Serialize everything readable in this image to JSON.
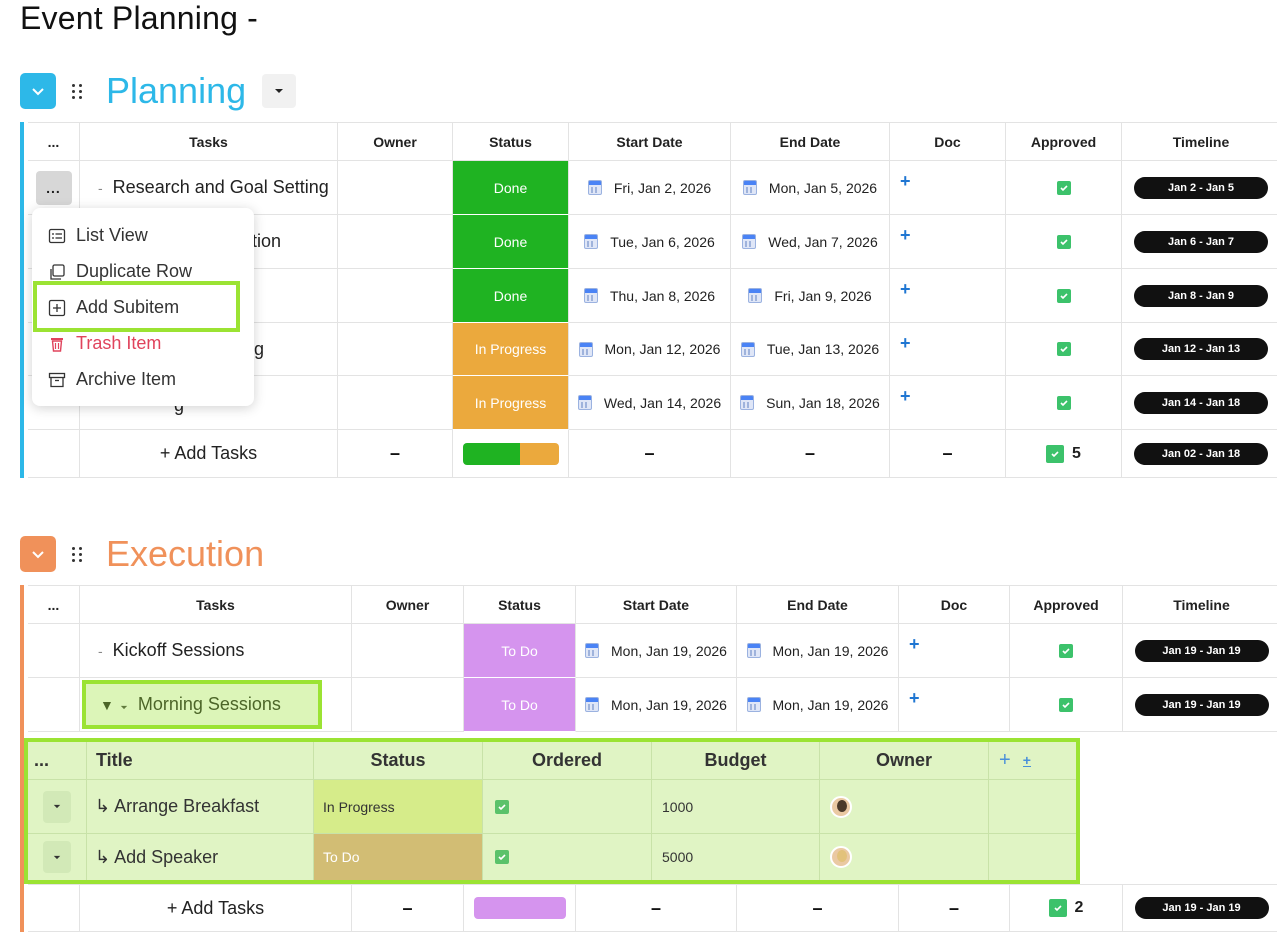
{
  "page_title": "Event Planning -",
  "icons": {
    "collapse": "chevron-down-icon",
    "drag": "drag-handle-icon",
    "calendar": "calendar-icon",
    "check": "checkbox-checked-icon"
  },
  "planning": {
    "name": "Planning",
    "accent": "#2db8e8",
    "columns": [
      "...",
      "Tasks",
      "Owner",
      "Status",
      "Start Date",
      "End Date",
      "Doc",
      "Approved",
      "Timeline"
    ],
    "rows": [
      {
        "task": "Research and Goal Setting",
        "status": "Done",
        "status_color": "#1fb322",
        "start": "Fri, Jan 2, 2026",
        "end": "Mon, Jan 5, 2026",
        "doc": "+",
        "timeline": "Jan 2 - Jan 5"
      },
      {
        "task": "ection",
        "status": "Done",
        "status_color": "#1fb322",
        "start": "Tue, Jan 6, 2026",
        "end": "Wed, Jan 7, 2026",
        "doc": "+",
        "timeline": "Jan 6 - Jan 7"
      },
      {
        "task": "",
        "status": "Done",
        "status_color": "#1fb322",
        "start": "Thu, Jan 8, 2026",
        "end": "Fri, Jan 9, 2026",
        "doc": "+",
        "timeline": "Jan 8 - Jan 9"
      },
      {
        "task": "g",
        "status": "In Progress",
        "status_color": "#eba93d",
        "start": "Mon, Jan 12, 2026",
        "end": "Tue, Jan 13, 2026",
        "doc": "+",
        "timeline": "Jan 12 - Jan 13"
      },
      {
        "task": "g",
        "status": "In Progress",
        "status_color": "#eba93d",
        "start": "Wed, Jan 14, 2026",
        "end": "Sun, Jan 18, 2026",
        "doc": "+",
        "timeline": "Jan 14 - Jan 18"
      }
    ],
    "summary": {
      "add_label": "+ Add Tasks",
      "owner": "–",
      "start": "–",
      "end": "–",
      "doc": "–",
      "approved_count": "5",
      "timeline": "Jan 02 - Jan 18",
      "status_done_fraction": 0.6
    },
    "more_label": "..."
  },
  "context_menu": {
    "items": [
      {
        "label": "List View",
        "icon": "list-view-icon"
      },
      {
        "label": "Duplicate Row",
        "icon": "duplicate-icon"
      },
      {
        "label": "Add Subitem",
        "icon": "add-box-icon"
      },
      {
        "label": "Trash Item",
        "icon": "trash-icon"
      },
      {
        "label": "Archive Item",
        "icon": "archive-icon"
      }
    ]
  },
  "execution": {
    "name": "Execution",
    "accent": "#f0915a",
    "columns": [
      "...",
      "Tasks",
      "Owner",
      "Status",
      "Start Date",
      "End Date",
      "Doc",
      "Approved",
      "Timeline"
    ],
    "rows": [
      {
        "task": "Kickoff Sessions",
        "status": "To Do",
        "status_color": "#d594ee",
        "start": "Mon, Jan 19, 2026",
        "end": "Mon, Jan 19, 2026",
        "doc": "+",
        "timeline": "Jan 19 - Jan 19"
      },
      {
        "task": "Morning Sessions",
        "status": "To Do",
        "status_color": "#d594ee",
        "start": "Mon, Jan 19, 2026",
        "end": "Mon, Jan 19, 2026",
        "doc": "+",
        "timeline": "Jan 19 - Jan 19"
      }
    ],
    "summary": {
      "add_label": "+ Add Tasks",
      "owner": "–",
      "start": "–",
      "end": "–",
      "doc": "–",
      "approved_count": "2",
      "timeline": "Jan 19 - Jan 19"
    }
  },
  "subitems": {
    "columns": [
      "...",
      "Title",
      "Status",
      "Ordered",
      "Budget",
      "Owner"
    ],
    "add_column": "+",
    "rows": [
      {
        "title": "↳ Arrange Breakfast",
        "status": "In Progress",
        "status_color": "#d6ec8a",
        "budget": "1000"
      },
      {
        "title": "↳ Add Speaker",
        "status": "To Do",
        "status_color": "#d2bd74",
        "budget": "5000"
      }
    ]
  }
}
